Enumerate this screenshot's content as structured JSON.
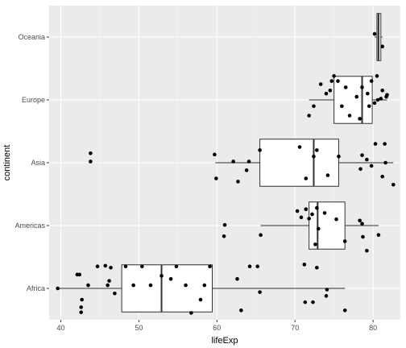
{
  "chart_data": {
    "type": "boxplot",
    "orientation": "horizontal",
    "xlabel": "lifeExp",
    "ylabel": "continent",
    "xlim": [
      38.5,
      83.5
    ],
    "x_ticks": [
      40,
      50,
      60,
      70,
      80
    ],
    "categories": [
      "Africa",
      "Americas",
      "Asia",
      "Europe",
      "Oceania"
    ],
    "grid": true,
    "jitter_points": true,
    "boxes": [
      {
        "category": "Africa",
        "min": 39.6,
        "q1": 47.8,
        "median": 52.9,
        "q3": 59.4,
        "max": 76.4
      },
      {
        "category": "Americas",
        "min": 65.6,
        "q1": 71.8,
        "median": 72.9,
        "q3": 76.4,
        "max": 80.7
      },
      {
        "category": "Asia",
        "min": 59.8,
        "q1": 65.5,
        "median": 72.4,
        "q3": 75.6,
        "max": 82.6
      },
      {
        "category": "Europe",
        "min": 71.8,
        "q1": 75.0,
        "median": 78.6,
        "q3": 79.9,
        "max": 81.8
      },
      {
        "category": "Oceania",
        "min": 80.2,
        "q1": 80.5,
        "median": 80.7,
        "q3": 81.0,
        "max": 81.2
      }
    ],
    "points": [
      {
        "category": "Africa",
        "x": 39.6,
        "jitter": 0.0
      },
      {
        "category": "Africa",
        "x": 42.1,
        "jitter": 0.22
      },
      {
        "category": "Africa",
        "x": 42.4,
        "jitter": 0.22
      },
      {
        "category": "Africa",
        "x": 42.6,
        "jitter": -0.38
      },
      {
        "category": "Africa",
        "x": 42.6,
        "jitter": -0.3
      },
      {
        "category": "Africa",
        "x": 42.7,
        "jitter": -0.18
      },
      {
        "category": "Africa",
        "x": 43.5,
        "jitter": 0.05
      },
      {
        "category": "Africa",
        "x": 45.7,
        "jitter": 0.36
      },
      {
        "category": "Africa",
        "x": 46.4,
        "jitter": 0.33
      },
      {
        "category": "Africa",
        "x": 46.2,
        "jitter": 0.12
      },
      {
        "category": "Africa",
        "x": 46.9,
        "jitter": -0.08
      },
      {
        "category": "Africa",
        "x": 46.0,
        "jitter": 0.05
      },
      {
        "category": "Africa",
        "x": 44.7,
        "jitter": 0.35
      },
      {
        "category": "Africa",
        "x": 48.3,
        "jitter": 0.35
      },
      {
        "category": "Africa",
        "x": 49.3,
        "jitter": 0.05
      },
      {
        "category": "Africa",
        "x": 50.4,
        "jitter": 0.35
      },
      {
        "category": "Africa",
        "x": 51.5,
        "jitter": 0.05
      },
      {
        "category": "Africa",
        "x": 52.9,
        "jitter": 0.2
      },
      {
        "category": "Africa",
        "x": 54.1,
        "jitter": 0.15
      },
      {
        "category": "Africa",
        "x": 54.8,
        "jitter": 0.35
      },
      {
        "category": "Africa",
        "x": 56.0,
        "jitter": 0.05
      },
      {
        "category": "Africa",
        "x": 56.7,
        "jitter": -0.39
      },
      {
        "category": "Africa",
        "x": 57.9,
        "jitter": -0.18
      },
      {
        "category": "Africa",
        "x": 58.4,
        "jitter": 0.05
      },
      {
        "category": "Africa",
        "x": 59.1,
        "jitter": 0.35
      },
      {
        "category": "Africa",
        "x": 62.6,
        "jitter": 0.15
      },
      {
        "category": "Africa",
        "x": 63.1,
        "jitter": -0.35
      },
      {
        "category": "Africa",
        "x": 64.2,
        "jitter": 0.35
      },
      {
        "category": "Africa",
        "x": 65.2,
        "jitter": 0.35
      },
      {
        "category": "Africa",
        "x": 65.5,
        "jitter": -0.06
      },
      {
        "category": "Africa",
        "x": 71.3,
        "jitter": -0.22
      },
      {
        "category": "Africa",
        "x": 71.2,
        "jitter": 0.38
      },
      {
        "category": "Africa",
        "x": 72.3,
        "jitter": -0.22
      },
      {
        "category": "Africa",
        "x": 72.8,
        "jitter": 0.33
      },
      {
        "category": "Africa",
        "x": 74.0,
        "jitter": -0.12
      },
      {
        "category": "Africa",
        "x": 74.1,
        "jitter": -0.02
      },
      {
        "category": "Africa",
        "x": 76.4,
        "jitter": -0.35
      },
      {
        "category": "Americas",
        "x": 60.9,
        "jitter": -0.17
      },
      {
        "category": "Americas",
        "x": 61.0,
        "jitter": 0.01
      },
      {
        "category": "Americas",
        "x": 65.6,
        "jitter": -0.15
      },
      {
        "category": "Americas",
        "x": 70.3,
        "jitter": 0.23
      },
      {
        "category": "Americas",
        "x": 70.8,
        "jitter": 0.13
      },
      {
        "category": "Americas",
        "x": 71.4,
        "jitter": 0.26
      },
      {
        "category": "Americas",
        "x": 71.8,
        "jitter": 0.11
      },
      {
        "category": "Americas",
        "x": 72.2,
        "jitter": 0.18
      },
      {
        "category": "Americas",
        "x": 72.6,
        "jitter": -0.3
      },
      {
        "category": "Americas",
        "x": 72.8,
        "jitter": 0.28
      },
      {
        "category": "Americas",
        "x": 73.0,
        "jitter": -0.05
      },
      {
        "category": "Americas",
        "x": 73.8,
        "jitter": 0.2
      },
      {
        "category": "Americas",
        "x": 75.3,
        "jitter": 0.1
      },
      {
        "category": "Americas",
        "x": 76.4,
        "jitter": -0.25
      },
      {
        "category": "Americas",
        "x": 78.3,
        "jitter": 0.08
      },
      {
        "category": "Americas",
        "x": 78.6,
        "jitter": 0.03
      },
      {
        "category": "Americas",
        "x": 78.7,
        "jitter": -0.18
      },
      {
        "category": "Americas",
        "x": 79.2,
        "jitter": -0.4
      },
      {
        "category": "Americas",
        "x": 80.7,
        "jitter": -0.15
      },
      {
        "category": "Asia",
        "x": 43.8,
        "jitter": 0.15
      },
      {
        "category": "Asia",
        "x": 43.8,
        "jitter": 0.02
      },
      {
        "category": "Asia",
        "x": 59.7,
        "jitter": 0.13
      },
      {
        "category": "Asia",
        "x": 59.9,
        "jitter": -0.25
      },
      {
        "category": "Asia",
        "x": 62.1,
        "jitter": 0.02
      },
      {
        "category": "Asia",
        "x": 62.7,
        "jitter": -0.3
      },
      {
        "category": "Asia",
        "x": 63.8,
        "jitter": -0.12
      },
      {
        "category": "Asia",
        "x": 64.1,
        "jitter": 0.02
      },
      {
        "category": "Asia",
        "x": 65.5,
        "jitter": 0.2
      },
      {
        "category": "Asia",
        "x": 70.6,
        "jitter": 0.25
      },
      {
        "category": "Asia",
        "x": 71.4,
        "jitter": -0.25
      },
      {
        "category": "Asia",
        "x": 72.4,
        "jitter": 0.1
      },
      {
        "category": "Asia",
        "x": 72.8,
        "jitter": 0.2
      },
      {
        "category": "Asia",
        "x": 74.2,
        "jitter": -0.2
      },
      {
        "category": "Asia",
        "x": 75.6,
        "jitter": 0.1
      },
      {
        "category": "Asia",
        "x": 78.4,
        "jitter": -0.1
      },
      {
        "category": "Asia",
        "x": 78.6,
        "jitter": 0.12
      },
      {
        "category": "Asia",
        "x": 79.2,
        "jitter": 0.05
      },
      {
        "category": "Asia",
        "x": 79.8,
        "jitter": -0.05
      },
      {
        "category": "Asia",
        "x": 80.3,
        "jitter": 0.3
      },
      {
        "category": "Asia",
        "x": 81.2,
        "jitter": -0.22
      },
      {
        "category": "Asia",
        "x": 81.6,
        "jitter": 0.0
      },
      {
        "category": "Asia",
        "x": 81.5,
        "jitter": 0.3
      },
      {
        "category": "Asia",
        "x": 82.6,
        "jitter": -0.35
      },
      {
        "category": "Europe",
        "x": 71.8,
        "jitter": -0.25
      },
      {
        "category": "Europe",
        "x": 72.4,
        "jitter": -0.1
      },
      {
        "category": "Europe",
        "x": 73.3,
        "jitter": 0.25
      },
      {
        "category": "Europe",
        "x": 74.0,
        "jitter": 0.1
      },
      {
        "category": "Europe",
        "x": 74.5,
        "jitter": 0.15
      },
      {
        "category": "Europe",
        "x": 74.7,
        "jitter": 0.3
      },
      {
        "category": "Europe",
        "x": 75.0,
        "jitter": 0.38
      },
      {
        "category": "Europe",
        "x": 75.5,
        "jitter": 0.3
      },
      {
        "category": "Europe",
        "x": 76.0,
        "jitter": -0.1
      },
      {
        "category": "Europe",
        "x": 76.5,
        "jitter": 0.2
      },
      {
        "category": "Europe",
        "x": 77.0,
        "jitter": -0.25
      },
      {
        "category": "Europe",
        "x": 77.9,
        "jitter": 0.05
      },
      {
        "category": "Europe",
        "x": 78.3,
        "jitter": -0.3
      },
      {
        "category": "Europe",
        "x": 78.6,
        "jitter": 0.2
      },
      {
        "category": "Europe",
        "x": 79.3,
        "jitter": 0.1
      },
      {
        "category": "Europe",
        "x": 79.5,
        "jitter": -0.1
      },
      {
        "category": "Europe",
        "x": 79.8,
        "jitter": 0.3
      },
      {
        "category": "Europe",
        "x": 80.2,
        "jitter": -0.05
      },
      {
        "category": "Europe",
        "x": 80.5,
        "jitter": 0.38
      },
      {
        "category": "Europe",
        "x": 80.6,
        "jitter": 0.0
      },
      {
        "category": "Europe",
        "x": 81.0,
        "jitter": 0.02
      },
      {
        "category": "Europe",
        "x": 81.2,
        "jitter": 0.15
      },
      {
        "category": "Europe",
        "x": 81.7,
        "jitter": 0.05
      },
      {
        "category": "Europe",
        "x": 81.8,
        "jitter": 0.08
      },
      {
        "category": "Oceania",
        "x": 80.2,
        "jitter": 0.05
      },
      {
        "category": "Oceania",
        "x": 81.2,
        "jitter": -0.15
      }
    ]
  }
}
